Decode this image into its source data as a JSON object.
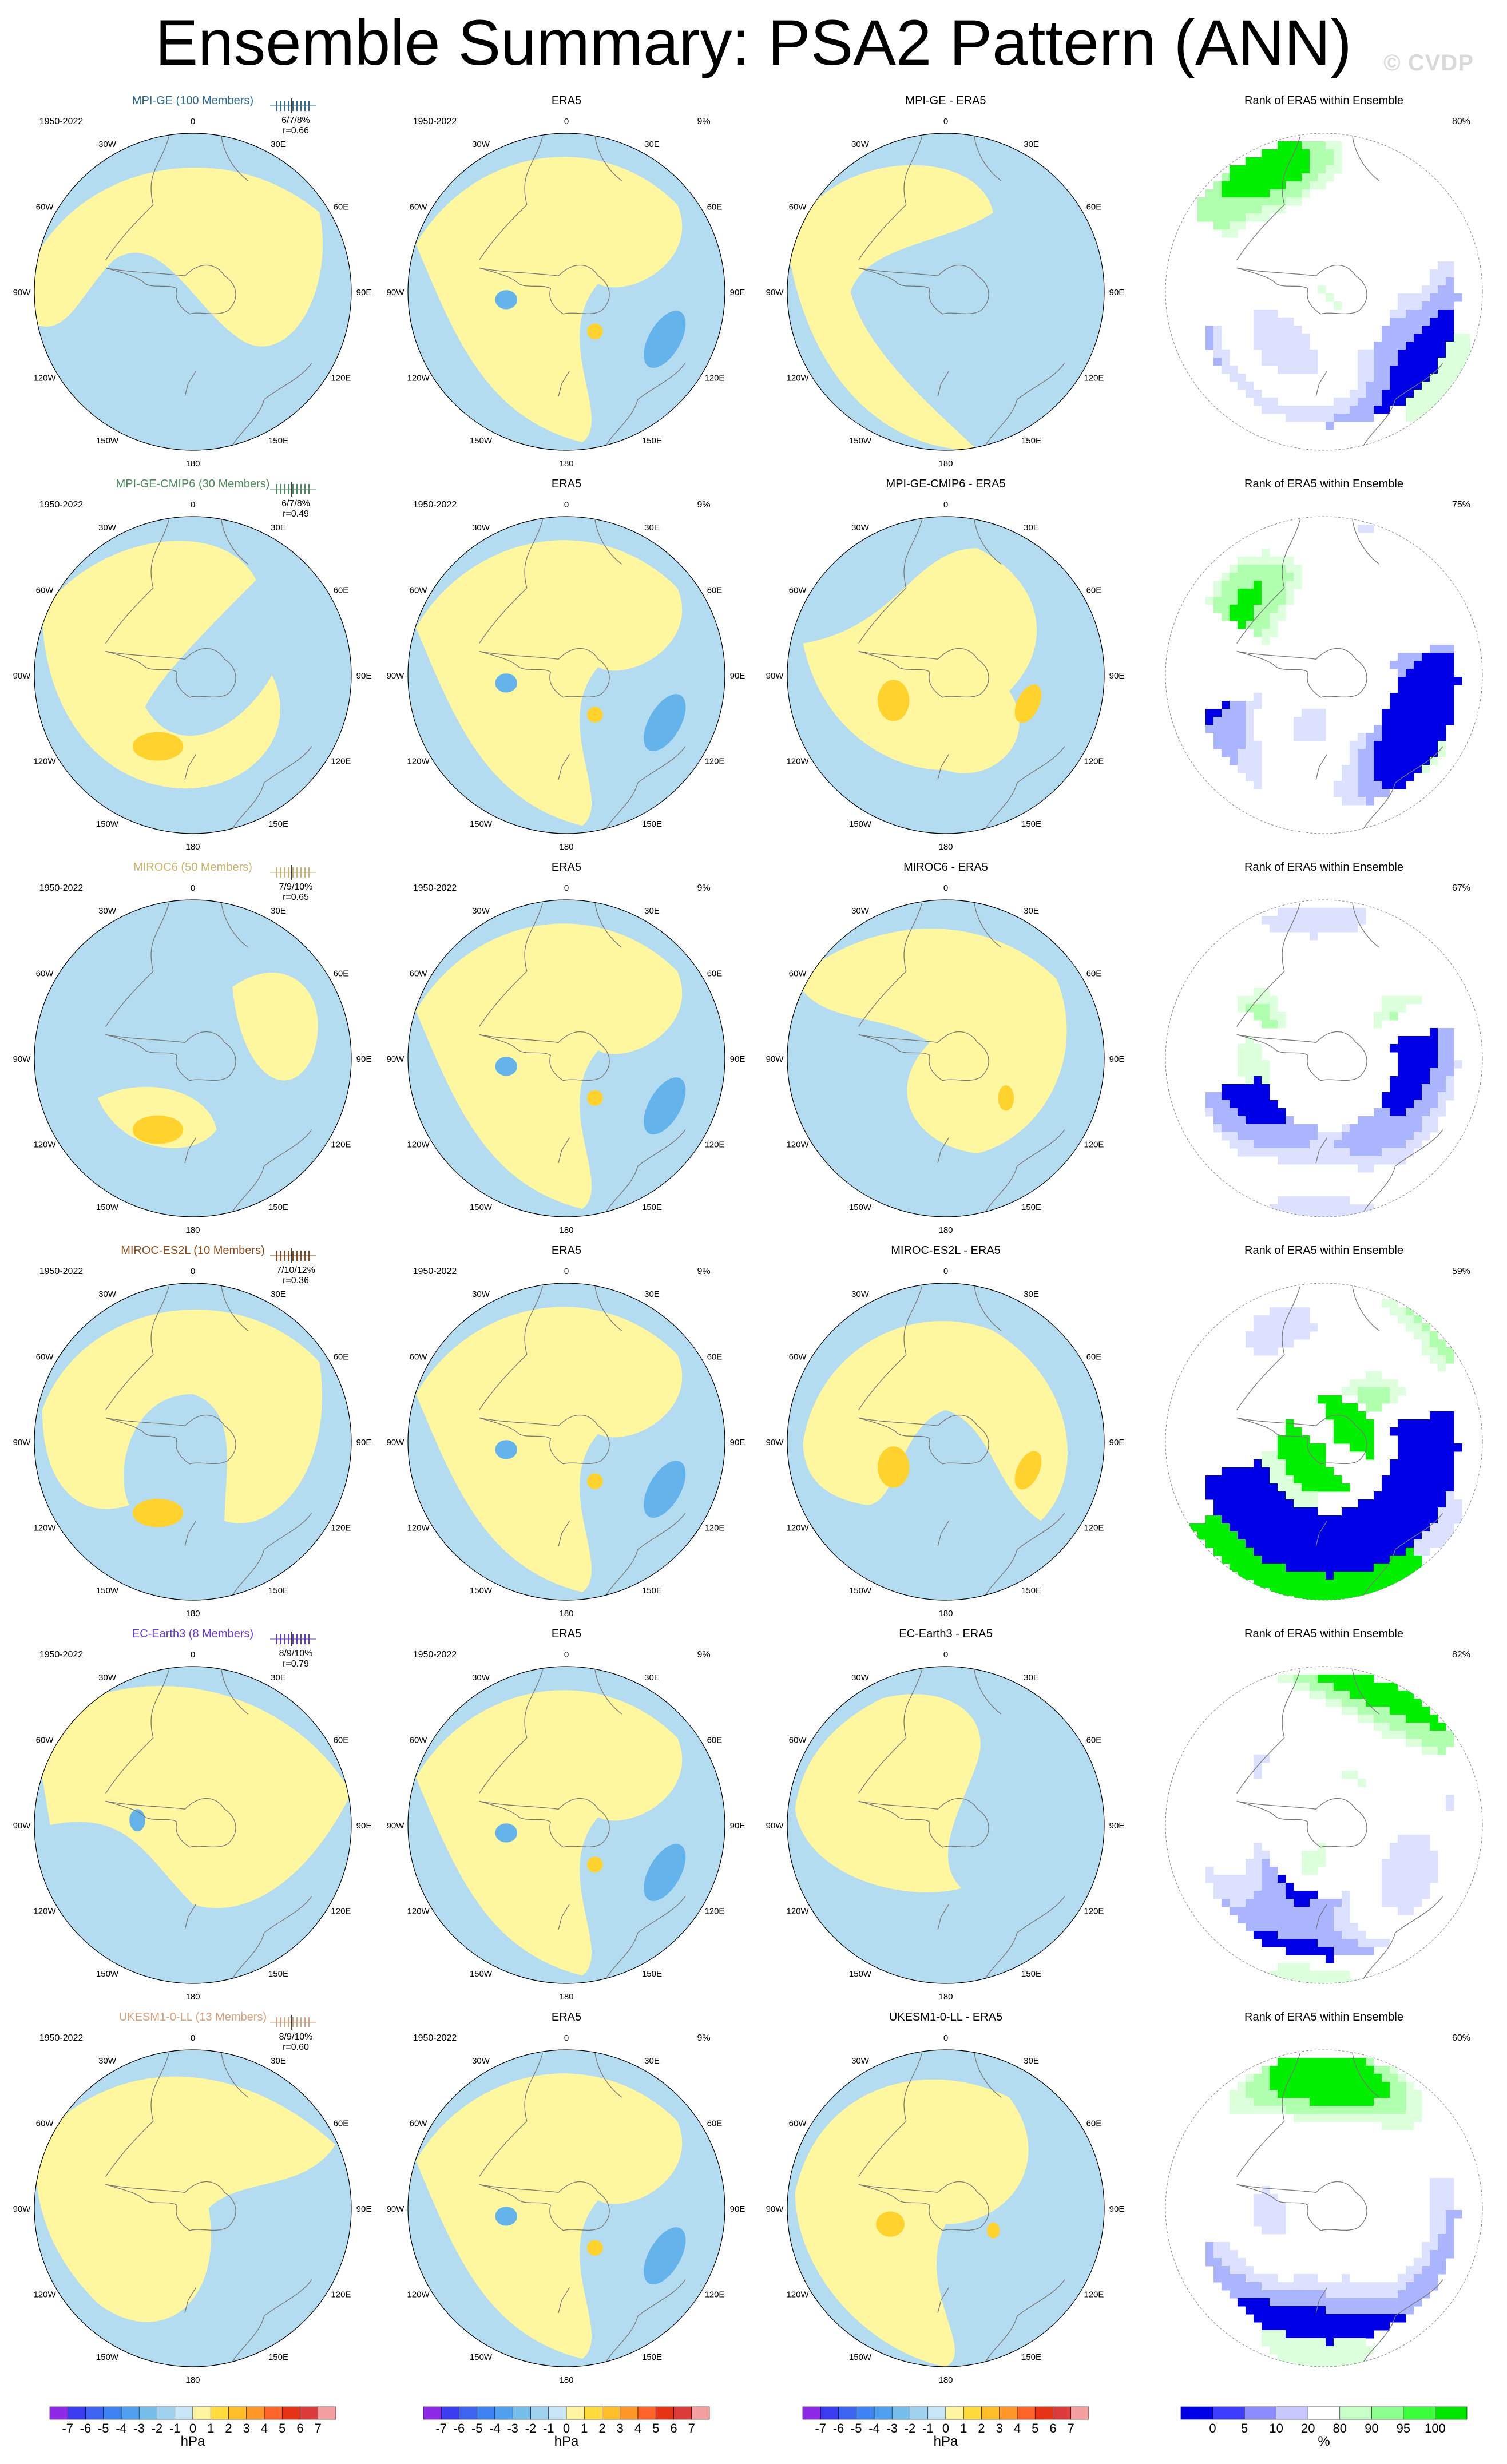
{
  "title": "Ensemble Summary: PSA2 Pattern (ANN)",
  "watermark": "© CVDP",
  "period": "1950-2022",
  "lon_labels": [
    "0",
    "30E",
    "60E",
    "90E",
    "120E",
    "150E",
    "180",
    "150W",
    "120W",
    "90W",
    "60W",
    "30W"
  ],
  "colors": {
    "ocean_neg": "#b4dcf0",
    "ocean_pos": "#fff6a0",
    "neg_blob": "#64b4eb",
    "pos_blob": "#ffd22d",
    "rank_blue": "#0000e6",
    "rank_lblue": "#aab4ff",
    "rank_pale": "#dce1ff",
    "rank_green": "#00f000",
    "rank_lgreen": "#afffaf",
    "rank_pgreen": "#dcffdc"
  },
  "rows": [
    {
      "model": "MPI-GE (100 Members)",
      "model_color": "#2a6b8f",
      "stats": "6/7/8%",
      "r": "r=0.66",
      "model_panel": {
        "pct": ""
      },
      "era5_panel": {
        "title": "ERA5",
        "pct": "9%"
      },
      "diff_panel": {
        "title": "MPI-GE - ERA5"
      },
      "rank_panel": {
        "title": "Rank of ERA5 within Ensemble",
        "pct": "80%"
      }
    },
    {
      "model": "MPI-GE-CMIP6 (30 Members)",
      "model_color": "#4a8a5a",
      "stats": "6/7/8%",
      "r": "r=0.49",
      "model_panel": {
        "pct": ""
      },
      "era5_panel": {
        "title": "ERA5",
        "pct": "9%"
      },
      "diff_panel": {
        "title": "MPI-GE-CMIP6 - ERA5"
      },
      "rank_panel": {
        "title": "Rank of ERA5 within Ensemble",
        "pct": "75%"
      }
    },
    {
      "model": "MIROC6 (50 Members)",
      "model_color": "#c9b46a",
      "stats": "7/9/10%",
      "r": "r=0.65",
      "model_panel": {
        "pct": ""
      },
      "era5_panel": {
        "title": "ERA5",
        "pct": "9%"
      },
      "diff_panel": {
        "title": "MIROC6 - ERA5"
      },
      "rank_panel": {
        "title": "Rank of ERA5 within Ensemble",
        "pct": "67%"
      }
    },
    {
      "model": "MIROC-ES2L (10 Members)",
      "model_color": "#8a4a1a",
      "stats": "7/10/12%",
      "r": "r=0.36",
      "model_panel": {
        "pct": ""
      },
      "era5_panel": {
        "title": "ERA5",
        "pct": "9%"
      },
      "diff_panel": {
        "title": "MIROC-ES2L - ERA5"
      },
      "rank_panel": {
        "title": "Rank of ERA5 within Ensemble",
        "pct": "59%"
      }
    },
    {
      "model": "EC-Earth3 (8 Members)",
      "model_color": "#6a3ac9",
      "stats": "8/9/10%",
      "r": "r=0.79",
      "model_panel": {
        "pct": ""
      },
      "era5_panel": {
        "title": "ERA5",
        "pct": "9%"
      },
      "diff_panel": {
        "title": "EC-Earth3 - ERA5"
      },
      "rank_panel": {
        "title": "Rank of ERA5 within Ensemble",
        "pct": "82%"
      }
    },
    {
      "model": "UKESM1-0-LL (13 Members)",
      "model_color": "#d9a07a",
      "stats": "8/9/10%",
      "r": "r=0.60",
      "model_panel": {
        "pct": ""
      },
      "era5_panel": {
        "title": "ERA5",
        "pct": "9%"
      },
      "diff_panel": {
        "title": "UKESM1-0-LL - ERA5"
      },
      "rank_panel": {
        "title": "Rank of ERA5 within Ensemble",
        "pct": "60%"
      }
    }
  ],
  "colorbar_hpa": {
    "labels": [
      "-7",
      "-6",
      "-5",
      "-4",
      "-3",
      "-2",
      "-1",
      "0",
      "1",
      "2",
      "3",
      "4",
      "5",
      "6",
      "7"
    ],
    "colors": [
      "#8c28e6",
      "#3c3cf0",
      "#3c64f0",
      "#3c82f0",
      "#50a0f0",
      "#78beeb",
      "#a0d2f0",
      "#c8e6f5",
      "#fff5a0",
      "#ffdc3c",
      "#ffbe28",
      "#ff9628",
      "#ff6428",
      "#e63214",
      "#dc3c3c",
      "#f5a0a0"
    ],
    "unit": "hPa"
  },
  "colorbar_rank": {
    "labels": [
      "0",
      "5",
      "10",
      "20",
      "80",
      "90",
      "95",
      "100"
    ],
    "colors": [
      "#0000e6",
      "#3c3cff",
      "#8c8cff",
      "#c8c8ff",
      "#ffffff",
      "#c8ffc8",
      "#8cff8c",
      "#3cff3c",
      "#00e600"
    ],
    "unit": "%"
  }
}
